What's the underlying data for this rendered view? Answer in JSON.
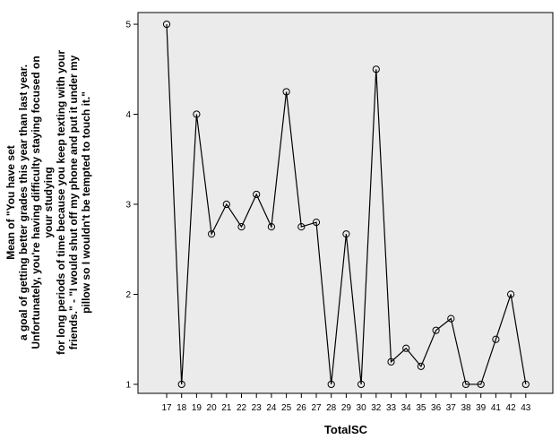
{
  "chart_data": {
    "type": "line",
    "xlabel": "TotalSC",
    "ylabel_lines": [
      "Mean of \"You have set",
      "a goal of getting better grades this year than last year.",
      "Unfortunately, you're having difficulty staying focused on",
      "your studying",
      "for long periods of time because you keep texting with your",
      "friends.\" - \"I would shut off my phone and put it under my",
      "pillow so I wouldn't be tempted to touch it.\""
    ],
    "categories": [
      "17",
      "18",
      "19",
      "20",
      "21",
      "22",
      "23",
      "24",
      "25",
      "26",
      "27",
      "28",
      "29",
      "30",
      "32",
      "33",
      "34",
      "35",
      "36",
      "37",
      "38",
      "39",
      "41",
      "42",
      "43"
    ],
    "values": [
      5,
      1,
      4,
      2.67,
      3,
      2.75,
      3.11,
      2.75,
      4.25,
      2.75,
      2.8,
      1,
      2.67,
      1,
      4.5,
      1.25,
      1.4,
      1.2,
      1.6,
      1.73,
      1,
      1,
      1.5,
      2,
      1
    ],
    "yticks": [
      "1",
      "2",
      "3",
      "4",
      "5"
    ],
    "ylim": [
      0.9,
      5.13
    ],
    "grid": false,
    "marker": "open-circle",
    "colors": {
      "plot_background": "#ebebeb",
      "line": "#000000"
    }
  }
}
